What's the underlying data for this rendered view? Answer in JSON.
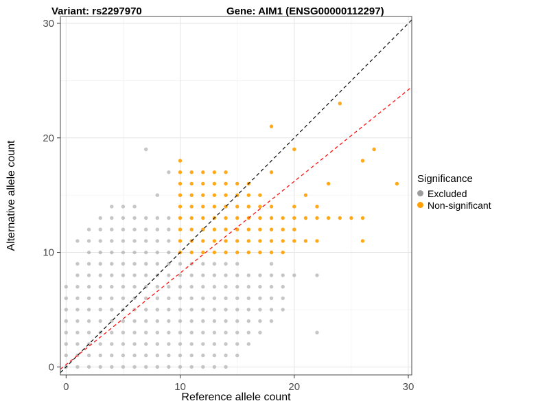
{
  "header": {
    "variant": "Variant: rs2297970",
    "gene": "Gene: AIM1 (ENSG00000112297)"
  },
  "legend": {
    "title": "Significance",
    "items": [
      {
        "label": "Excluded",
        "color": "#9c9c9c"
      },
      {
        "label": "Non-significant",
        "color": "#ffa000"
      }
    ]
  },
  "chart_data": {
    "type": "scatter",
    "title": "Variant: rs2297970   Gene: AIM1 (ENSG00000112297)",
    "xlabel": "Reference allele count",
    "ylabel": "Alternative allele count",
    "xlim": [
      -0.5,
      30.3
    ],
    "ylim": [
      -0.7,
      30.6
    ],
    "xticks": [
      0,
      10,
      20,
      30
    ],
    "yticks": [
      0,
      10,
      20,
      30
    ],
    "minor_ticks": [
      5,
      15,
      25
    ],
    "grid": true,
    "grid_major_color": "#e3e3e3",
    "grid_minor_color": "#f0f0f0",
    "panel_border_color": "#4a4a4a",
    "legend_position": "right",
    "point_radius": 2.7,
    "lines": [
      {
        "name": "identity",
        "slope": 1,
        "intercept": 0,
        "color": "#111111",
        "dash": "5 4"
      },
      {
        "name": "fit",
        "slope": 0.8,
        "intercept": 0.2,
        "color": "#ff0f0f",
        "dash": "5 4"
      }
    ],
    "series": [
      {
        "name": "Excluded",
        "color": "#a8a8a8",
        "opacity": 0.65,
        "points": [
          [
            0,
            0
          ],
          [
            0,
            1
          ],
          [
            0,
            2
          ],
          [
            0,
            3
          ],
          [
            0,
            4
          ],
          [
            0,
            5
          ],
          [
            0,
            6
          ],
          [
            0,
            7
          ],
          [
            1,
            0
          ],
          [
            1,
            1
          ],
          [
            1,
            2
          ],
          [
            1,
            3
          ],
          [
            1,
            4
          ],
          [
            1,
            5
          ],
          [
            1,
            6
          ],
          [
            1,
            7
          ],
          [
            1,
            8
          ],
          [
            1,
            9
          ],
          [
            1,
            11
          ],
          [
            2,
            0
          ],
          [
            2,
            1
          ],
          [
            2,
            2
          ],
          [
            2,
            3
          ],
          [
            2,
            4
          ],
          [
            2,
            5
          ],
          [
            2,
            6
          ],
          [
            2,
            7
          ],
          [
            2,
            8
          ],
          [
            2,
            9
          ],
          [
            2,
            10
          ],
          [
            2,
            11
          ],
          [
            2,
            12
          ],
          [
            3,
            0
          ],
          [
            3,
            1
          ],
          [
            3,
            2
          ],
          [
            3,
            3
          ],
          [
            3,
            4
          ],
          [
            3,
            5
          ],
          [
            3,
            6
          ],
          [
            3,
            7
          ],
          [
            3,
            8
          ],
          [
            3,
            9
          ],
          [
            3,
            10
          ],
          [
            3,
            11
          ],
          [
            3,
            12
          ],
          [
            3,
            13
          ],
          [
            4,
            0
          ],
          [
            4,
            1
          ],
          [
            4,
            2
          ],
          [
            4,
            3
          ],
          [
            4,
            4
          ],
          [
            4,
            5
          ],
          [
            4,
            6
          ],
          [
            4,
            7
          ],
          [
            4,
            8
          ],
          [
            4,
            9
          ],
          [
            4,
            10
          ],
          [
            4,
            11
          ],
          [
            4,
            12
          ],
          [
            4,
            13
          ],
          [
            4,
            14
          ],
          [
            5,
            0
          ],
          [
            5,
            1
          ],
          [
            5,
            2
          ],
          [
            5,
            3
          ],
          [
            5,
            4
          ],
          [
            5,
            5
          ],
          [
            5,
            6
          ],
          [
            5,
            7
          ],
          [
            5,
            8
          ],
          [
            5,
            9
          ],
          [
            5,
            10
          ],
          [
            5,
            11
          ],
          [
            5,
            12
          ],
          [
            5,
            13
          ],
          [
            5,
            14
          ],
          [
            6,
            0
          ],
          [
            6,
            1
          ],
          [
            6,
            2
          ],
          [
            6,
            3
          ],
          [
            6,
            4
          ],
          [
            6,
            5
          ],
          [
            6,
            6
          ],
          [
            6,
            7
          ],
          [
            6,
            8
          ],
          [
            6,
            9
          ],
          [
            6,
            10
          ],
          [
            6,
            11
          ],
          [
            6,
            12
          ],
          [
            6,
            13
          ],
          [
            6,
            14
          ],
          [
            7,
            0
          ],
          [
            7,
            1
          ],
          [
            7,
            2
          ],
          [
            7,
            3
          ],
          [
            7,
            4
          ],
          [
            7,
            5
          ],
          [
            7,
            6
          ],
          [
            7,
            7
          ],
          [
            7,
            8
          ],
          [
            7,
            9
          ],
          [
            7,
            10
          ],
          [
            7,
            11
          ],
          [
            7,
            12
          ],
          [
            7,
            13
          ],
          [
            7,
            19
          ],
          [
            8,
            0
          ],
          [
            8,
            1
          ],
          [
            8,
            2
          ],
          [
            8,
            3
          ],
          [
            8,
            4
          ],
          [
            8,
            5
          ],
          [
            8,
            6
          ],
          [
            8,
            7
          ],
          [
            8,
            8
          ],
          [
            8,
            9
          ],
          [
            8,
            10
          ],
          [
            8,
            11
          ],
          [
            8,
            12
          ],
          [
            8,
            13
          ],
          [
            8,
            15
          ],
          [
            9,
            0
          ],
          [
            9,
            1
          ],
          [
            9,
            2
          ],
          [
            9,
            3
          ],
          [
            9,
            4
          ],
          [
            9,
            5
          ],
          [
            9,
            6
          ],
          [
            9,
            7
          ],
          [
            9,
            8
          ],
          [
            9,
            9
          ],
          [
            9,
            10
          ],
          [
            9,
            11
          ],
          [
            9,
            12
          ],
          [
            9,
            13
          ],
          [
            9,
            17
          ],
          [
            10,
            0
          ],
          [
            10,
            1
          ],
          [
            10,
            2
          ],
          [
            10,
            3
          ],
          [
            10,
            4
          ],
          [
            10,
            5
          ],
          [
            10,
            6
          ],
          [
            10,
            7
          ],
          [
            10,
            8
          ],
          [
            10,
            9
          ],
          [
            11,
            0
          ],
          [
            11,
            1
          ],
          [
            11,
            2
          ],
          [
            11,
            3
          ],
          [
            11,
            4
          ],
          [
            11,
            5
          ],
          [
            11,
            6
          ],
          [
            11,
            7
          ],
          [
            11,
            8
          ],
          [
            11,
            9
          ],
          [
            12,
            0
          ],
          [
            12,
            1
          ],
          [
            12,
            2
          ],
          [
            12,
            3
          ],
          [
            12,
            4
          ],
          [
            12,
            5
          ],
          [
            12,
            6
          ],
          [
            12,
            7
          ],
          [
            12,
            8
          ],
          [
            12,
            9
          ],
          [
            13,
            0
          ],
          [
            13,
            1
          ],
          [
            13,
            2
          ],
          [
            13,
            3
          ],
          [
            13,
            4
          ],
          [
            13,
            5
          ],
          [
            13,
            6
          ],
          [
            13,
            7
          ],
          [
            13,
            8
          ],
          [
            13,
            9
          ],
          [
            14,
            0
          ],
          [
            14,
            1
          ],
          [
            14,
            2
          ],
          [
            14,
            3
          ],
          [
            14,
            4
          ],
          [
            14,
            5
          ],
          [
            14,
            6
          ],
          [
            14,
            7
          ],
          [
            14,
            8
          ],
          [
            14,
            9
          ],
          [
            15,
            1
          ],
          [
            15,
            2
          ],
          [
            15,
            3
          ],
          [
            15,
            4
          ],
          [
            15,
            5
          ],
          [
            15,
            6
          ],
          [
            15,
            7
          ],
          [
            15,
            8
          ],
          [
            15,
            9
          ],
          [
            16,
            2
          ],
          [
            16,
            3
          ],
          [
            16,
            4
          ],
          [
            16,
            5
          ],
          [
            16,
            6
          ],
          [
            16,
            7
          ],
          [
            16,
            8
          ],
          [
            17,
            3
          ],
          [
            17,
            4
          ],
          [
            17,
            5
          ],
          [
            17,
            6
          ],
          [
            17,
            7
          ],
          [
            17,
            8
          ],
          [
            18,
            4
          ],
          [
            18,
            5
          ],
          [
            18,
            6
          ],
          [
            18,
            7
          ],
          [
            18,
            8
          ],
          [
            18,
            9
          ],
          [
            19,
            5
          ],
          [
            19,
            6
          ],
          [
            19,
            7
          ],
          [
            19,
            8
          ],
          [
            20,
            8
          ],
          [
            22,
            3
          ],
          [
            22,
            8
          ]
        ]
      },
      {
        "name": "Non-significant",
        "color": "#ffa000",
        "opacity": 0.9,
        "points": [
          [
            10,
            10
          ],
          [
            10,
            11
          ],
          [
            10,
            12
          ],
          [
            10,
            13
          ],
          [
            10,
            14
          ],
          [
            10,
            15
          ],
          [
            10,
            16
          ],
          [
            10,
            17
          ],
          [
            10,
            18
          ],
          [
            11,
            10
          ],
          [
            11,
            11
          ],
          [
            11,
            12
          ],
          [
            11,
            13
          ],
          [
            11,
            14
          ],
          [
            11,
            15
          ],
          [
            11,
            16
          ],
          [
            11,
            17
          ],
          [
            12,
            10
          ],
          [
            12,
            11
          ],
          [
            12,
            12
          ],
          [
            12,
            13
          ],
          [
            12,
            14
          ],
          [
            12,
            15
          ],
          [
            12,
            16
          ],
          [
            12,
            17
          ],
          [
            13,
            10
          ],
          [
            13,
            11
          ],
          [
            13,
            12
          ],
          [
            13,
            13
          ],
          [
            13,
            14
          ],
          [
            13,
            15
          ],
          [
            13,
            16
          ],
          [
            13,
            17
          ],
          [
            14,
            10
          ],
          [
            14,
            11
          ],
          [
            14,
            12
          ],
          [
            14,
            13
          ],
          [
            14,
            14
          ],
          [
            14,
            15
          ],
          [
            14,
            16
          ],
          [
            14,
            17
          ],
          [
            15,
            10
          ],
          [
            15,
            11
          ],
          [
            15,
            12
          ],
          [
            15,
            13
          ],
          [
            15,
            14
          ],
          [
            15,
            15
          ],
          [
            15,
            16
          ],
          [
            16,
            10
          ],
          [
            16,
            11
          ],
          [
            16,
            12
          ],
          [
            16,
            13
          ],
          [
            16,
            14
          ],
          [
            16,
            15
          ],
          [
            16,
            16
          ],
          [
            17,
            10
          ],
          [
            17,
            11
          ],
          [
            17,
            12
          ],
          [
            17,
            13
          ],
          [
            17,
            14
          ],
          [
            17,
            15
          ],
          [
            18,
            10
          ],
          [
            18,
            11
          ],
          [
            18,
            12
          ],
          [
            18,
            13
          ],
          [
            18,
            14
          ],
          [
            18,
            17
          ],
          [
            18,
            21
          ],
          [
            19,
            10
          ],
          [
            19,
            11
          ],
          [
            19,
            12
          ],
          [
            19,
            13
          ],
          [
            20,
            11
          ],
          [
            20,
            12
          ],
          [
            20,
            13
          ],
          [
            20,
            14
          ],
          [
            20,
            19
          ],
          [
            21,
            11
          ],
          [
            21,
            13
          ],
          [
            21,
            15
          ],
          [
            22,
            11
          ],
          [
            22,
            13
          ],
          [
            22,
            14
          ],
          [
            23,
            13
          ],
          [
            23,
            16
          ],
          [
            24,
            13
          ],
          [
            24,
            23
          ],
          [
            25,
            13
          ],
          [
            26,
            11
          ],
          [
            26,
            13
          ],
          [
            26,
            18
          ],
          [
            27,
            19
          ],
          [
            29,
            16
          ]
        ]
      }
    ]
  }
}
